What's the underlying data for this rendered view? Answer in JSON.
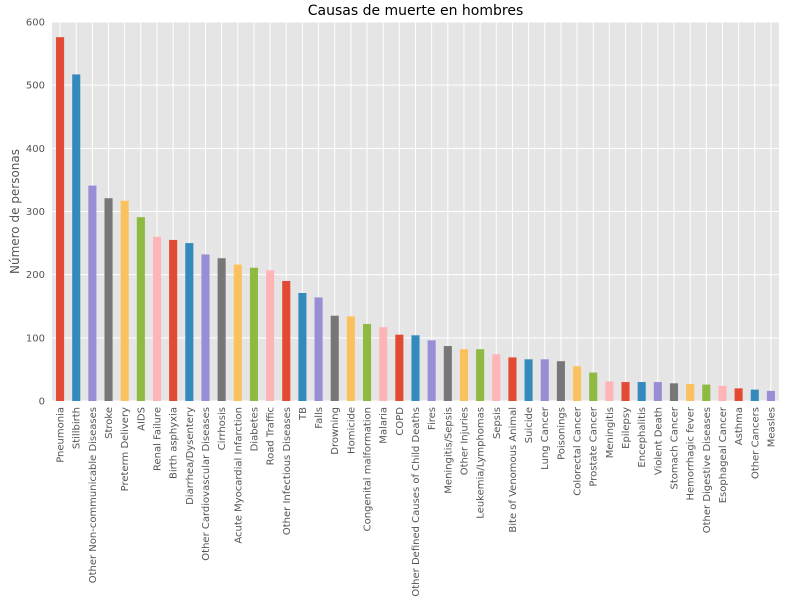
{
  "chart_data": {
    "type": "bar",
    "title": "Causas de muerte en hombres",
    "xlabel": "",
    "ylabel": "Número de personas",
    "ylim": [
      0,
      600
    ],
    "yticks": [
      0,
      100,
      200,
      300,
      400,
      500,
      600
    ],
    "grid": true,
    "categories": [
      "Pneumonia",
      "Stillbirth",
      "Other Non-communicable Diseases",
      "Stroke",
      "Preterm Delivery",
      "AIDS",
      "Renal Failure",
      "Birth asphyxia",
      "Diarrhea/Dysentery",
      "Other Cardiovascular Diseases",
      "Cirrhosis",
      "Acute Myocardial Infarction",
      "Diabetes",
      "Road Traffic",
      "Other Infectious Diseases",
      "TB",
      "Falls",
      "Drowning",
      "Homicide",
      "Congenital malformation",
      "Malaria",
      "COPD",
      "Other Defined Causes of Child Deaths",
      "Fires",
      "Meningitis/Sepsis",
      "Other Injuries",
      "Leukemia/Lymphomas",
      "Sepsis",
      "Bite of Venomous Animal",
      "Suicide",
      "Lung Cancer",
      "Poisonings",
      "Colorectal Cancer",
      "Prostate Cancer",
      "Meningitis",
      "Epilepsy",
      "Encephalitis",
      "Violent Death",
      "Stomach Cancer",
      "Hemorrhagic fever",
      "Other Digestive Diseases",
      "Esophageal Cancer",
      "Asthma",
      "Other Cancers",
      "Measles"
    ],
    "values": [
      576,
      517,
      341,
      321,
      317,
      291,
      260,
      255,
      250,
      232,
      226,
      216,
      211,
      207,
      190,
      171,
      164,
      135,
      134,
      122,
      117,
      105,
      104,
      96,
      87,
      82,
      82,
      74,
      69,
      66,
      66,
      63,
      55,
      45,
      31,
      30,
      30,
      30,
      28,
      27,
      26,
      24,
      20,
      18,
      16
    ],
    "bar_colors": [
      "#E24A33",
      "#348ABD",
      "#988ED5",
      "#777777",
      "#FBC15E",
      "#8EBA42",
      "#FFB5B8"
    ]
  },
  "colors": {
    "plot_background": "#E5E5E5",
    "grid": "#FFFFFF",
    "text": "#555555"
  }
}
